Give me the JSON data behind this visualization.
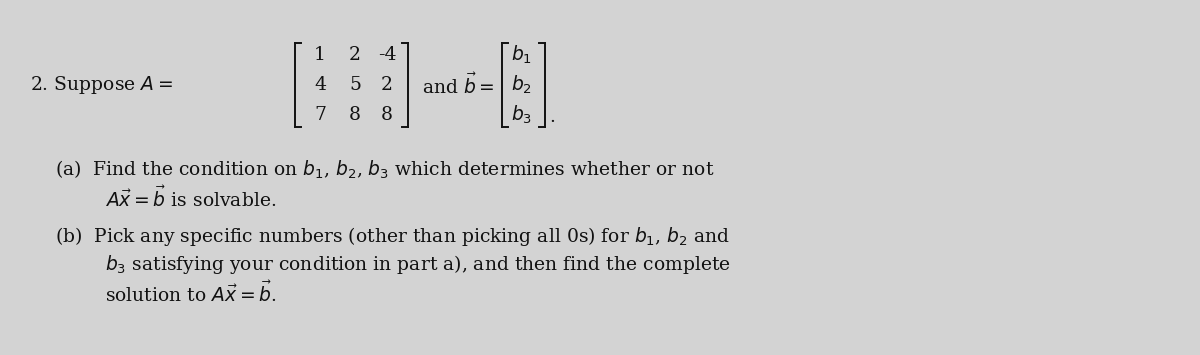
{
  "background_color": "#d3d3d3",
  "fig_width": 12.0,
  "fig_height": 3.55,
  "text_color": "#111111",
  "fontsize": 13.5,
  "matrix_A": [
    [
      "1",
      "2",
      "-4"
    ],
    [
      "4",
      "5",
      "2"
    ],
    [
      "7",
      "8",
      "8"
    ]
  ],
  "vec_b": [
    "b_1",
    "b_2",
    "b_3"
  ],
  "line_a1": "(a)  Find the condition on $b_1$, $b_2$, $b_3$ which determines whether or not",
  "line_a2": "$A\\vec{x} = \\vec{b}$ is solvable.",
  "line_b1": "(b)  Pick any specific numbers (other than picking all 0s) for $b_1$, $b_2$ and",
  "line_b2": "$b_3$ satisfying your condition in part a), and then find the complete",
  "line_b3": "solution to $A\\vec{x} = \\vec{b}$.",
  "suppose_text": "2. Suppose $A =$",
  "and_text": "and $\\vec{b} =$"
}
